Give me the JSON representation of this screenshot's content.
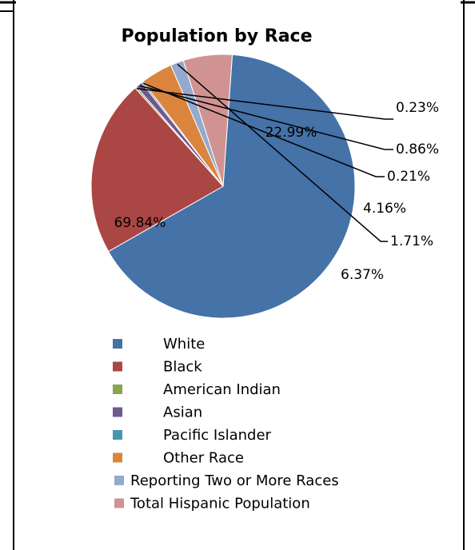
{
  "chart_data": {
    "type": "pie",
    "title": "Population by Race",
    "categories": [
      "White",
      "Black",
      "American Indian",
      "Asian",
      "Pacific Islander",
      "Other Race",
      "Reporting Two or More Races",
      "Total Hispanic Population"
    ],
    "values": [
      69.84,
      22.99,
      0.23,
      0.86,
      0.21,
      4.16,
      1.71,
      6.37
    ],
    "labels": [
      "69.84%",
      "22.99%",
      "0.23%",
      "0.86%",
      "0.21%",
      "4.16%",
      "1.71%",
      "6.37%"
    ],
    "colors": [
      "#4572A7",
      "#AA4643",
      "#89A54E",
      "#71588F",
      "#4198AF",
      "#DB843D",
      "#93A9CF",
      "#D19392"
    ],
    "legend_position": "bottom"
  }
}
